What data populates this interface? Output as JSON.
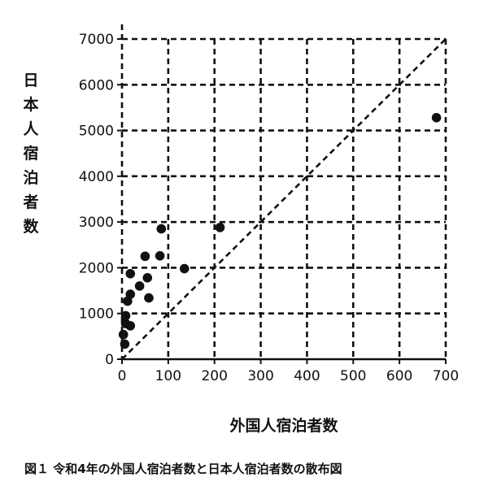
{
  "chart_data": {
    "type": "scatter",
    "xlabel": "外国人宿泊者数",
    "ylabel": "日本人宿泊者数",
    "xlim": [
      0,
      700
    ],
    "ylim": [
      0,
      7000
    ],
    "x_ticks": [
      0,
      100,
      200,
      300,
      400,
      500,
      600,
      700
    ],
    "y_ticks": [
      0,
      1000,
      2000,
      3000,
      4000,
      5000,
      6000,
      7000
    ],
    "grid": true,
    "reference_line": "y = 10x (dashed diagonal from origin)",
    "points": [
      {
        "x": 680,
        "y": 5280
      },
      {
        "x": 212,
        "y": 2880
      },
      {
        "x": 85,
        "y": 2850
      },
      {
        "x": 50,
        "y": 2250
      },
      {
        "x": 82,
        "y": 2260
      },
      {
        "x": 135,
        "y": 1980
      },
      {
        "x": 18,
        "y": 1870
      },
      {
        "x": 55,
        "y": 1780
      },
      {
        "x": 38,
        "y": 1600
      },
      {
        "x": 18,
        "y": 1420
      },
      {
        "x": 58,
        "y": 1340
      },
      {
        "x": 12,
        "y": 1270
      },
      {
        "x": 8,
        "y": 950
      },
      {
        "x": 8,
        "y": 780
      },
      {
        "x": 18,
        "y": 730
      },
      {
        "x": 3,
        "y": 540
      },
      {
        "x": 6,
        "y": 330
      }
    ]
  },
  "caption": "図１ 令和4年の外国人宿泊者数と日本人宿泊者数の散布図"
}
